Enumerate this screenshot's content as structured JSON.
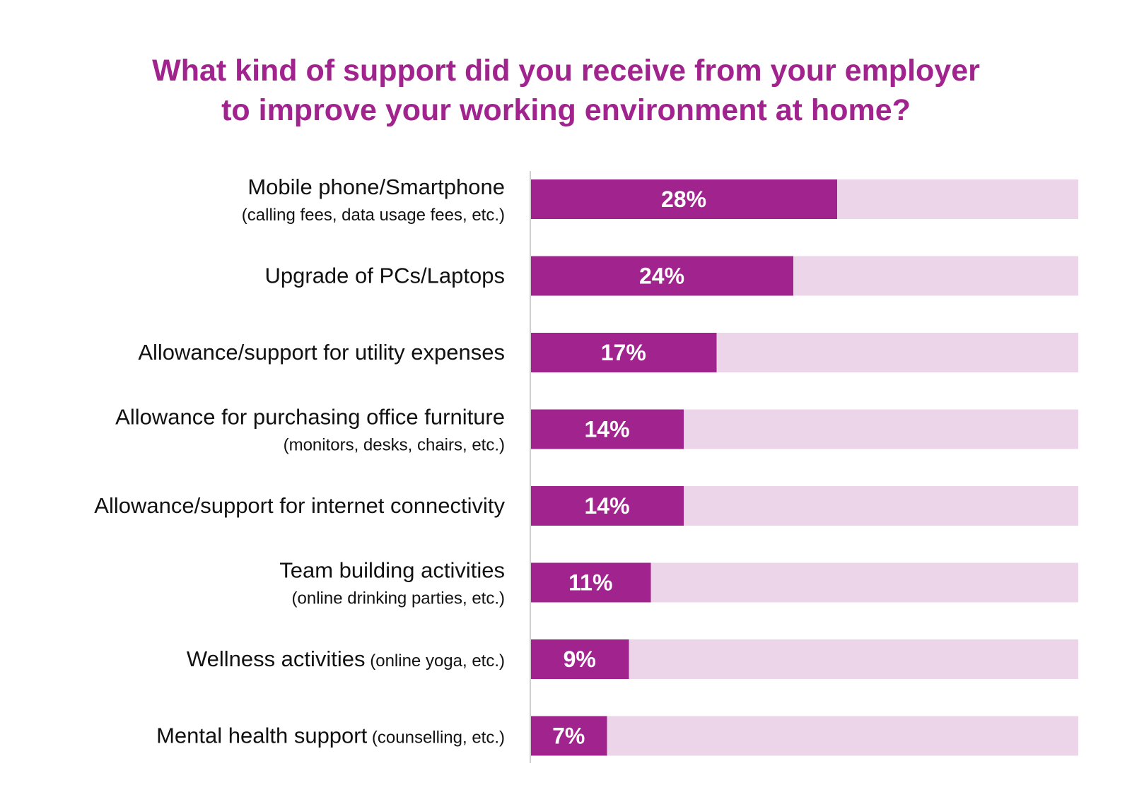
{
  "title": {
    "line1": "What kind of support did you receive from your employer",
    "line2": "to improve your working environment at home?"
  },
  "colors": {
    "title": "#a1238d",
    "bar": "#a1238d",
    "track": "#ecd5e8",
    "axis": "#cfcfcf",
    "label": "#111111",
    "value_label": "#ffffff"
  },
  "chart_data": {
    "type": "bar",
    "orientation": "horizontal",
    "title": "What kind of support did you receive from your employer to improve your working environment at home?",
    "xlim": [
      0,
      50
    ],
    "unit": "%",
    "grid": false,
    "categories": [
      {
        "main": "Mobile phone/Smartphone",
        "sub": "(calling fees, data usage fees, etc.)",
        "sub_inline": false
      },
      {
        "main": "Upgrade of PCs/Laptops",
        "sub": "",
        "sub_inline": false
      },
      {
        "main": "Allowance/support for utility expenses",
        "sub": "",
        "sub_inline": false
      },
      {
        "main": "Allowance for purchasing office furniture",
        "sub": "(monitors, desks, chairs, etc.)",
        "sub_inline": false
      },
      {
        "main": "Allowance/support for internet connectivity",
        "sub": "",
        "sub_inline": false
      },
      {
        "main": "Team building activities",
        "sub": "(online drinking parties, etc.)",
        "sub_inline": false
      },
      {
        "main": "Wellness activities",
        "sub": "(online yoga, etc.)",
        "sub_inline": true
      },
      {
        "main": "Mental health support",
        "sub": "(counselling, etc.)",
        "sub_inline": true
      }
    ],
    "values": [
      28,
      24,
      17,
      14,
      14,
      11,
      9,
      7
    ],
    "value_labels": [
      "28%",
      "24%",
      "17%",
      "14%",
      "14%",
      "11%",
      "9%",
      "7%"
    ]
  }
}
